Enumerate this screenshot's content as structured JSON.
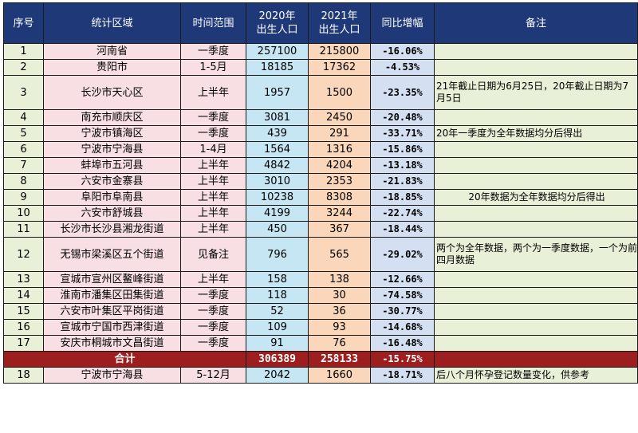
{
  "headers": {
    "idx": "序号",
    "region": "统计区域",
    "time": "时间范围",
    "y2020_line1": "2020年",
    "y2020_line2": "出生人口",
    "y2021_line1": "2021年",
    "y2021_line2": "出生人口",
    "rate": "同比增幅",
    "note": "备注"
  },
  "rows": [
    {
      "idx": "1",
      "region": "河南省",
      "time": "一季度",
      "y2020": "257100",
      "y2021": "215800",
      "rate": "-16.06%",
      "note": ""
    },
    {
      "idx": "2",
      "region": "贵阳市",
      "time": "1-5月",
      "y2020": "18185",
      "y2021": "17362",
      "rate": "-4.53%",
      "note": ""
    },
    {
      "idx": "3",
      "region": "长沙市天心区",
      "time": "上半年",
      "y2020": "1957",
      "y2021": "1500",
      "rate": "-23.35%",
      "note": "21年截止日期为6月25日，20年截止日期为7月5日"
    },
    {
      "idx": "4",
      "region": "南充市顺庆区",
      "time": "一季度",
      "y2020": "3081",
      "y2021": "2450",
      "rate": "-20.48%",
      "note": ""
    },
    {
      "idx": "5",
      "region": "宁波市镇海区",
      "time": "一季度",
      "y2020": "439",
      "y2021": "291",
      "rate": "-33.71%",
      "note": "20年一季度为全年数据均分后得出"
    },
    {
      "idx": "6",
      "region": "宁波市宁海县",
      "time": "1-4月",
      "y2020": "1564",
      "y2021": "1316",
      "rate": "-15.86%",
      "note": ""
    },
    {
      "idx": "7",
      "region": "蚌埠市五河县",
      "time": "上半年",
      "y2020": "4842",
      "y2021": "4204",
      "rate": "-13.18%",
      "note": ""
    },
    {
      "idx": "8",
      "region": "六安市金寨县",
      "time": "上半年",
      "y2020": "3010",
      "y2021": "2353",
      "rate": "-21.83%",
      "note": ""
    },
    {
      "idx": "9",
      "region": "阜阳市阜南县",
      "time": "上半年",
      "y2020": "10238",
      "y2021": "8308",
      "rate": "-18.85%",
      "note": "20年数据为全年数据均分后得出"
    },
    {
      "idx": "10",
      "region": "六安市舒城县",
      "time": "上半年",
      "y2020": "4199",
      "y2021": "3244",
      "rate": "-22.74%",
      "note": ""
    },
    {
      "idx": "11",
      "region": "长沙市长沙县湘龙街道",
      "time": "上半年",
      "y2020": "450",
      "y2021": "367",
      "rate": "-18.44%",
      "note": ""
    },
    {
      "idx": "12",
      "region": "无锡市梁溪区五个街道",
      "time": "见备注",
      "y2020": "796",
      "y2021": "565",
      "rate": "-29.02%",
      "note": "两个为全年数据，两个为一季度数据，一个为前四月数据"
    },
    {
      "idx": "13",
      "region": "宣城市宣州区鳌峰街道",
      "time": "上半年",
      "y2020": "158",
      "y2021": "138",
      "rate": "-12.66%",
      "note": ""
    },
    {
      "idx": "14",
      "region": "淮南市潘集区田集街道",
      "time": "一季度",
      "y2020": "118",
      "y2021": "30",
      "rate": "-74.58%",
      "note": ""
    },
    {
      "idx": "15",
      "region": "六安市叶集区平岗街道",
      "time": "一季度",
      "y2020": "52",
      "y2021": "36",
      "rate": "-30.77%",
      "note": ""
    },
    {
      "idx": "16",
      "region": "宣城市宁国市西津街道",
      "time": "一季度",
      "y2020": "109",
      "y2021": "93",
      "rate": "-14.68%",
      "note": ""
    },
    {
      "idx": "17",
      "region": "安庆市桐城市文昌街道",
      "time": "一季度",
      "y2020": "91",
      "y2021": "76",
      "rate": "-16.48%",
      "note": ""
    }
  ],
  "total": {
    "label": "合计",
    "y2020": "306389",
    "y2021": "258133",
    "rate": "-15.75%"
  },
  "extra_row": {
    "idx": "18",
    "region": "宁波市宁海县",
    "time": "5-12月",
    "y2020": "2042",
    "y2021": "1660",
    "rate": "-18.71%",
    "note": "后八个月怀孕登记数量变化，供参考"
  },
  "colors": {
    "header_bg": "#1f3878",
    "total_bg": "#9c1e1e",
    "idx_bg": "#e8f0d8",
    "region_bg": "#f7dfe4",
    "y2020_bg": "#c5e6f2",
    "y2021_bg": "#fad7ba",
    "rate_bg": "#d4e0f2"
  }
}
